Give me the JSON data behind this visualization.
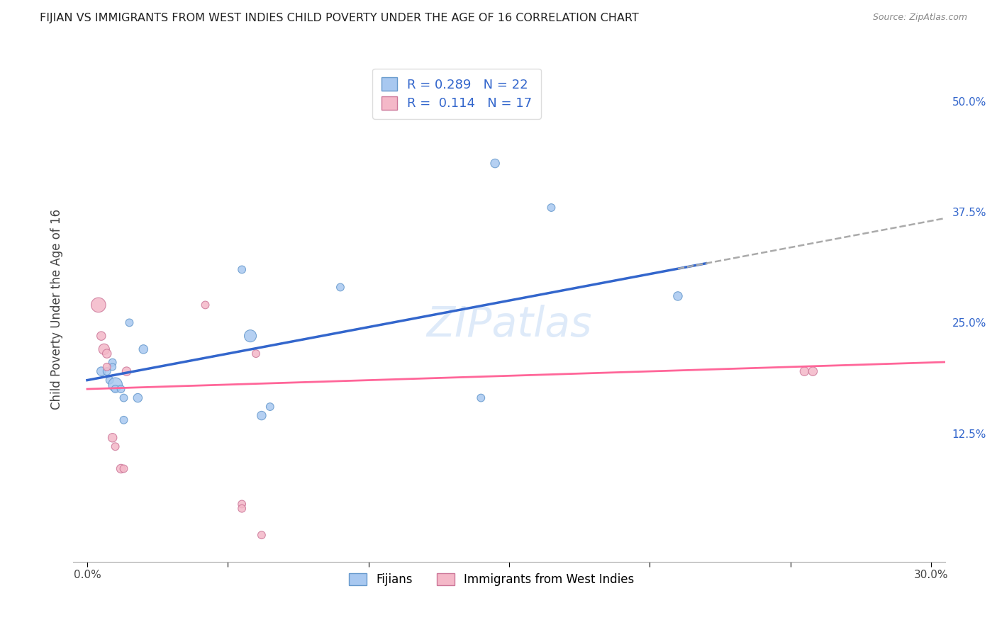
{
  "title": "FIJIAN VS IMMIGRANTS FROM WEST INDIES CHILD POVERTY UNDER THE AGE OF 16 CORRELATION CHART",
  "source": "Source: ZipAtlas.com",
  "ylabel_label": "Child Poverty Under the Age of 16",
  "xlim": [
    -0.005,
    0.305
  ],
  "ylim": [
    -0.02,
    0.55
  ],
  "xtick_positions": [
    0.0,
    0.05,
    0.1,
    0.15,
    0.2,
    0.25,
    0.3
  ],
  "xtick_labels": [
    "0.0%",
    "",
    "",
    "",
    "",
    "",
    "30.0%"
  ],
  "ytick_positions_right": [
    0.125,
    0.25,
    0.375,
    0.5
  ],
  "ytick_labels_right": [
    "12.5%",
    "25.0%",
    "37.5%",
    "50.0%"
  ],
  "fijian_color": "#a8c8f0",
  "fijian_edge": "#6699cc",
  "west_indies_color": "#f4b8c8",
  "west_indies_edge": "#cc7799",
  "fijian_R": "0.289",
  "fijian_N": "22",
  "west_indies_R": "0.114",
  "west_indies_N": "17",
  "legend_label1": "Fijians",
  "legend_label2": "Immigrants from West Indies",
  "fijian_x": [
    0.005,
    0.007,
    0.008,
    0.009,
    0.009,
    0.01,
    0.01,
    0.012,
    0.013,
    0.013,
    0.015,
    0.018,
    0.02,
    0.055,
    0.058,
    0.062,
    0.065,
    0.09,
    0.14,
    0.145,
    0.165,
    0.21
  ],
  "fijian_y": [
    0.195,
    0.195,
    0.185,
    0.205,
    0.2,
    0.18,
    0.175,
    0.175,
    0.165,
    0.14,
    0.25,
    0.165,
    0.22,
    0.31,
    0.235,
    0.145,
    0.155,
    0.29,
    0.165,
    0.43,
    0.38,
    0.28
  ],
  "fijian_size": [
    80,
    60,
    60,
    60,
    50,
    200,
    60,
    60,
    60,
    60,
    60,
    80,
    80,
    60,
    150,
    80,
    60,
    60,
    60,
    80,
    60,
    80
  ],
  "west_indies_x": [
    0.004,
    0.005,
    0.006,
    0.007,
    0.007,
    0.009,
    0.01,
    0.012,
    0.013,
    0.014,
    0.042,
    0.055,
    0.055,
    0.06,
    0.062,
    0.255,
    0.258
  ],
  "west_indies_y": [
    0.27,
    0.235,
    0.22,
    0.215,
    0.2,
    0.12,
    0.11,
    0.085,
    0.085,
    0.195,
    0.27,
    0.045,
    0.04,
    0.215,
    0.01,
    0.195,
    0.195
  ],
  "west_indies_size": [
    220,
    80,
    120,
    80,
    60,
    80,
    60,
    80,
    60,
    80,
    60,
    60,
    60,
    60,
    60,
    80,
    80
  ],
  "blue_line_color": "#3366cc",
  "pink_line_color": "#ff6699",
  "dashed_line_color": "#aaaaaa",
  "background_color": "#ffffff",
  "grid_color": "#cccccc",
  "watermark": "ZIPatlas",
  "fijian_trend_intercept": 0.185,
  "fijian_trend_slope": 0.6,
  "west_indies_trend_intercept": 0.175,
  "west_indies_trend_slope": 0.1
}
